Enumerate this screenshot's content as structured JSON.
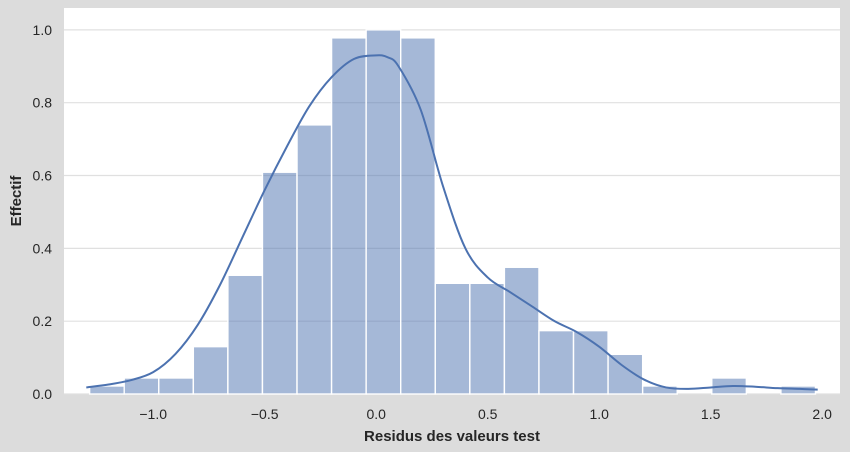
{
  "chart_data": {
    "type": "bar",
    "subtype": "histogram-with-kde",
    "title": "",
    "xlabel": "Residus des valeurs test",
    "ylabel": "Effectif",
    "xlim": [
      -1.4,
      2.08
    ],
    "ylim": [
      0,
      1.06
    ],
    "grid": "horizontal",
    "legend": "none",
    "xticks": [
      -1.0,
      -0.5,
      0.0,
      0.5,
      1.0,
      1.5,
      2.0
    ],
    "xtick_labels": [
      "−1.0",
      "−0.5",
      "0.0",
      "0.5",
      "1.0",
      "1.5",
      "2.0"
    ],
    "yticks": [
      0.0,
      0.2,
      0.4,
      0.6,
      0.8,
      1.0
    ],
    "ytick_labels": [
      "0.0",
      "0.2",
      "0.4",
      "0.6",
      "0.8",
      "1.0"
    ],
    "bin_width": 0.155,
    "bins": [
      {
        "x0": -1.285,
        "value": 0.022
      },
      {
        "x0": -1.13,
        "value": 0.044
      },
      {
        "x0": -0.975,
        "value": 0.044
      },
      {
        "x0": -0.82,
        "value": 0.13
      },
      {
        "x0": -0.665,
        "value": 0.326
      },
      {
        "x0": -0.51,
        "value": 0.609
      },
      {
        "x0": -0.355,
        "value": 0.739
      },
      {
        "x0": -0.2,
        "value": 0.978
      },
      {
        "x0": -0.045,
        "value": 1.0
      },
      {
        "x0": 0.11,
        "value": 0.978
      },
      {
        "x0": 0.265,
        "value": 0.304
      },
      {
        "x0": 0.42,
        "value": 0.304
      },
      {
        "x0": 0.575,
        "value": 0.348
      },
      {
        "x0": 0.73,
        "value": 0.174
      },
      {
        "x0": 0.885,
        "value": 0.174
      },
      {
        "x0": 1.04,
        "value": 0.109
      },
      {
        "x0": 1.195,
        "value": 0.022
      },
      {
        "x0": 1.35,
        "value": 0.0
      },
      {
        "x0": 1.505,
        "value": 0.044
      },
      {
        "x0": 1.66,
        "value": 0.0
      },
      {
        "x0": 1.815,
        "value": 0.022
      }
    ],
    "kde": {
      "x": [
        -1.3,
        -1.2,
        -1.1,
        -1.0,
        -0.9,
        -0.8,
        -0.7,
        -0.6,
        -0.5,
        -0.4,
        -0.3,
        -0.2,
        -0.1,
        0.0,
        0.05,
        0.1,
        0.2,
        0.3,
        0.4,
        0.5,
        0.6,
        0.7,
        0.8,
        0.9,
        1.0,
        1.1,
        1.2,
        1.3,
        1.4,
        1.5,
        1.6,
        1.7,
        1.8,
        1.9,
        1.98
      ],
      "y": [
        0.018,
        0.026,
        0.038,
        0.06,
        0.11,
        0.19,
        0.3,
        0.43,
        0.56,
        0.68,
        0.79,
        0.87,
        0.92,
        0.93,
        0.925,
        0.9,
        0.78,
        0.57,
        0.4,
        0.32,
        0.28,
        0.24,
        0.2,
        0.17,
        0.13,
        0.08,
        0.04,
        0.018,
        0.014,
        0.018,
        0.022,
        0.02,
        0.016,
        0.014,
        0.012
      ]
    },
    "colors": {
      "bar_fill": "#4C72B0",
      "bar_opacity": 0.5,
      "bar_edge": "#ffffff",
      "kde_line": "#4C72B0",
      "plot_background": "#ffffff",
      "figure_background": "#dcdcdc",
      "grid": "#e0e0e0"
    }
  }
}
